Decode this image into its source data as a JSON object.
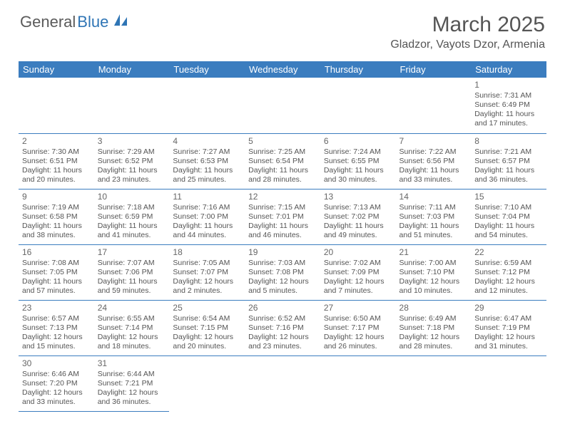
{
  "logo": {
    "text1": "General",
    "text2": "Blue"
  },
  "title": "March 2025",
  "location": "Gladzor, Vayots Dzor, Armenia",
  "colors": {
    "header_bg": "#3b7dbf",
    "header_text": "#ffffff",
    "border": "#3b7dbf",
    "body_text": "#555555",
    "logo_gray": "#5a5a5a",
    "logo_blue": "#2f75b5"
  },
  "day_headers": [
    "Sunday",
    "Monday",
    "Tuesday",
    "Wednesday",
    "Thursday",
    "Friday",
    "Saturday"
  ],
  "weeks": [
    [
      null,
      null,
      null,
      null,
      null,
      null,
      {
        "d": "1",
        "sr": "7:31 AM",
        "ss": "6:49 PM",
        "dl": "11 hours and 17 minutes."
      }
    ],
    [
      {
        "d": "2",
        "sr": "7:30 AM",
        "ss": "6:51 PM",
        "dl": "11 hours and 20 minutes."
      },
      {
        "d": "3",
        "sr": "7:29 AM",
        "ss": "6:52 PM",
        "dl": "11 hours and 23 minutes."
      },
      {
        "d": "4",
        "sr": "7:27 AM",
        "ss": "6:53 PM",
        "dl": "11 hours and 25 minutes."
      },
      {
        "d": "5",
        "sr": "7:25 AM",
        "ss": "6:54 PM",
        "dl": "11 hours and 28 minutes."
      },
      {
        "d": "6",
        "sr": "7:24 AM",
        "ss": "6:55 PM",
        "dl": "11 hours and 30 minutes."
      },
      {
        "d": "7",
        "sr": "7:22 AM",
        "ss": "6:56 PM",
        "dl": "11 hours and 33 minutes."
      },
      {
        "d": "8",
        "sr": "7:21 AM",
        "ss": "6:57 PM",
        "dl": "11 hours and 36 minutes."
      }
    ],
    [
      {
        "d": "9",
        "sr": "7:19 AM",
        "ss": "6:58 PM",
        "dl": "11 hours and 38 minutes."
      },
      {
        "d": "10",
        "sr": "7:18 AM",
        "ss": "6:59 PM",
        "dl": "11 hours and 41 minutes."
      },
      {
        "d": "11",
        "sr": "7:16 AM",
        "ss": "7:00 PM",
        "dl": "11 hours and 44 minutes."
      },
      {
        "d": "12",
        "sr": "7:15 AM",
        "ss": "7:01 PM",
        "dl": "11 hours and 46 minutes."
      },
      {
        "d": "13",
        "sr": "7:13 AM",
        "ss": "7:02 PM",
        "dl": "11 hours and 49 minutes."
      },
      {
        "d": "14",
        "sr": "7:11 AM",
        "ss": "7:03 PM",
        "dl": "11 hours and 51 minutes."
      },
      {
        "d": "15",
        "sr": "7:10 AM",
        "ss": "7:04 PM",
        "dl": "11 hours and 54 minutes."
      }
    ],
    [
      {
        "d": "16",
        "sr": "7:08 AM",
        "ss": "7:05 PM",
        "dl": "11 hours and 57 minutes."
      },
      {
        "d": "17",
        "sr": "7:07 AM",
        "ss": "7:06 PM",
        "dl": "11 hours and 59 minutes."
      },
      {
        "d": "18",
        "sr": "7:05 AM",
        "ss": "7:07 PM",
        "dl": "12 hours and 2 minutes."
      },
      {
        "d": "19",
        "sr": "7:03 AM",
        "ss": "7:08 PM",
        "dl": "12 hours and 5 minutes."
      },
      {
        "d": "20",
        "sr": "7:02 AM",
        "ss": "7:09 PM",
        "dl": "12 hours and 7 minutes."
      },
      {
        "d": "21",
        "sr": "7:00 AM",
        "ss": "7:10 PM",
        "dl": "12 hours and 10 minutes."
      },
      {
        "d": "22",
        "sr": "6:59 AM",
        "ss": "7:12 PM",
        "dl": "12 hours and 12 minutes."
      }
    ],
    [
      {
        "d": "23",
        "sr": "6:57 AM",
        "ss": "7:13 PM",
        "dl": "12 hours and 15 minutes."
      },
      {
        "d": "24",
        "sr": "6:55 AM",
        "ss": "7:14 PM",
        "dl": "12 hours and 18 minutes."
      },
      {
        "d": "25",
        "sr": "6:54 AM",
        "ss": "7:15 PM",
        "dl": "12 hours and 20 minutes."
      },
      {
        "d": "26",
        "sr": "6:52 AM",
        "ss": "7:16 PM",
        "dl": "12 hours and 23 minutes."
      },
      {
        "d": "27",
        "sr": "6:50 AM",
        "ss": "7:17 PM",
        "dl": "12 hours and 26 minutes."
      },
      {
        "d": "28",
        "sr": "6:49 AM",
        "ss": "7:18 PM",
        "dl": "12 hours and 28 minutes."
      },
      {
        "d": "29",
        "sr": "6:47 AM",
        "ss": "7:19 PM",
        "dl": "12 hours and 31 minutes."
      }
    ],
    [
      {
        "d": "30",
        "sr": "6:46 AM",
        "ss": "7:20 PM",
        "dl": "12 hours and 33 minutes."
      },
      {
        "d": "31",
        "sr": "6:44 AM",
        "ss": "7:21 PM",
        "dl": "12 hours and 36 minutes."
      },
      null,
      null,
      null,
      null,
      null
    ]
  ],
  "labels": {
    "sunrise": "Sunrise:",
    "sunset": "Sunset:",
    "daylight": "Daylight:"
  }
}
